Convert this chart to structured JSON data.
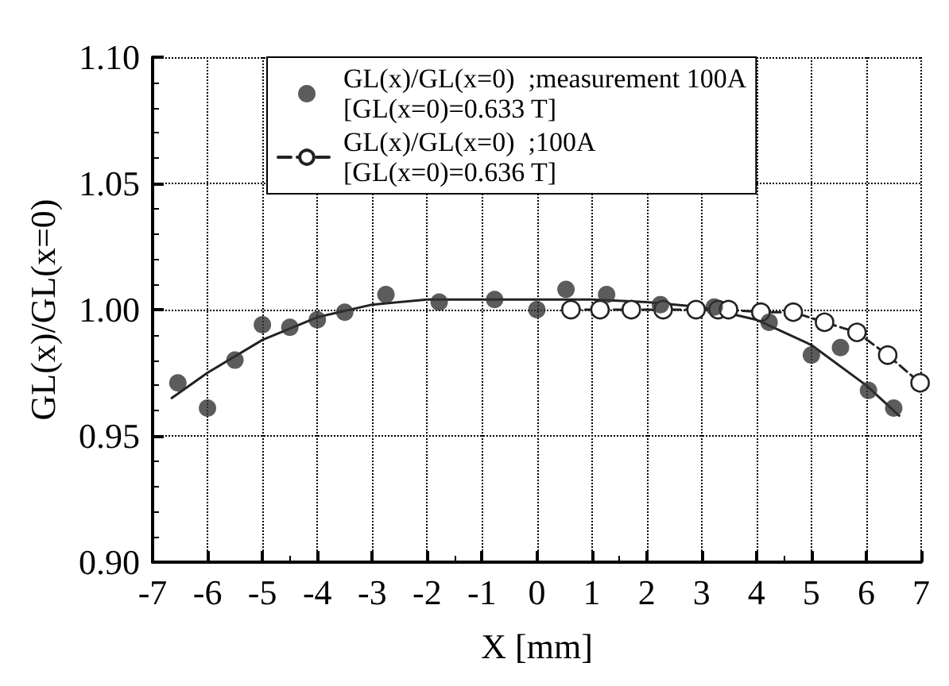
{
  "chart_data": {
    "type": "scatter",
    "xlabel": "X [mm]",
    "ylabel": "GL(x)/GL(x=0)",
    "xlim": [
      -7,
      7
    ],
    "xticks": [
      -7,
      -6,
      -5,
      -4,
      -3,
      -2,
      -1,
      0,
      1,
      2,
      3,
      4,
      5,
      6,
      7
    ],
    "ylim": [
      0.9,
      1.1
    ],
    "yticks": [
      {
        "value": 0.9,
        "label": "0.90"
      },
      0.95,
      {
        "value": 1.0,
        "label": "1.00"
      },
      1.05,
      {
        "value": 1.1,
        "label": "1.10"
      }
    ],
    "grid": true,
    "legend": "top",
    "series": [
      {
        "name": "GL(x)/GL(x=0)  ;measurement 100A\n[GL(x=0)=0.633 T]",
        "color": "#333333",
        "marker": "circle",
        "x": [
          -6.54,
          -6.0,
          -5.5,
          -5.0,
          -4.5,
          -4.0,
          -3.5,
          -2.75,
          -1.78,
          -0.77,
          0.0,
          0.53,
          1.27,
          2.25,
          3.23,
          4.23,
          5.0,
          5.53,
          6.04,
          6.5
        ],
        "values": [
          0.971,
          0.961,
          0.98,
          0.994,
          0.993,
          0.996,
          0.999,
          1.006,
          1.003,
          1.004,
          1.0,
          1.008,
          1.006,
          1.002,
          1.001,
          0.995,
          0.982,
          0.985,
          0.968,
          0.961
        ]
      },
      {
        "name": "GL(x)/GL(x=0)  ;100A\n[GL(x=0)=0.636 T]",
        "type": "line",
        "color": "#222222",
        "marker": "circle",
        "line_style": "dashed",
        "x": [
          0.62,
          1.15,
          1.72,
          2.3,
          2.9,
          3.3,
          3.49,
          4.08,
          4.67,
          5.24,
          5.83,
          6.39,
          6.98
        ],
        "values": [
          1.0,
          1.0,
          1.0,
          1.0,
          1.0,
          1.0,
          1.0,
          0.999,
          0.999,
          0.995,
          0.991,
          0.982,
          0.971
        ]
      },
      {
        "type": "line",
        "color": "#222222",
        "marker": "none",
        "line_style": "solid",
        "x": [
          -6.65,
          -6,
          -5,
          -4,
          -3,
          -2,
          0,
          1,
          2,
          3,
          4,
          5,
          6,
          6.6
        ],
        "values": [
          0.965,
          0.975,
          0.988,
          0.997,
          1.002,
          1.004,
          1.004,
          1.004,
          1.003,
          1.001,
          0.996,
          0.986,
          0.97,
          0.958
        ]
      }
    ]
  }
}
